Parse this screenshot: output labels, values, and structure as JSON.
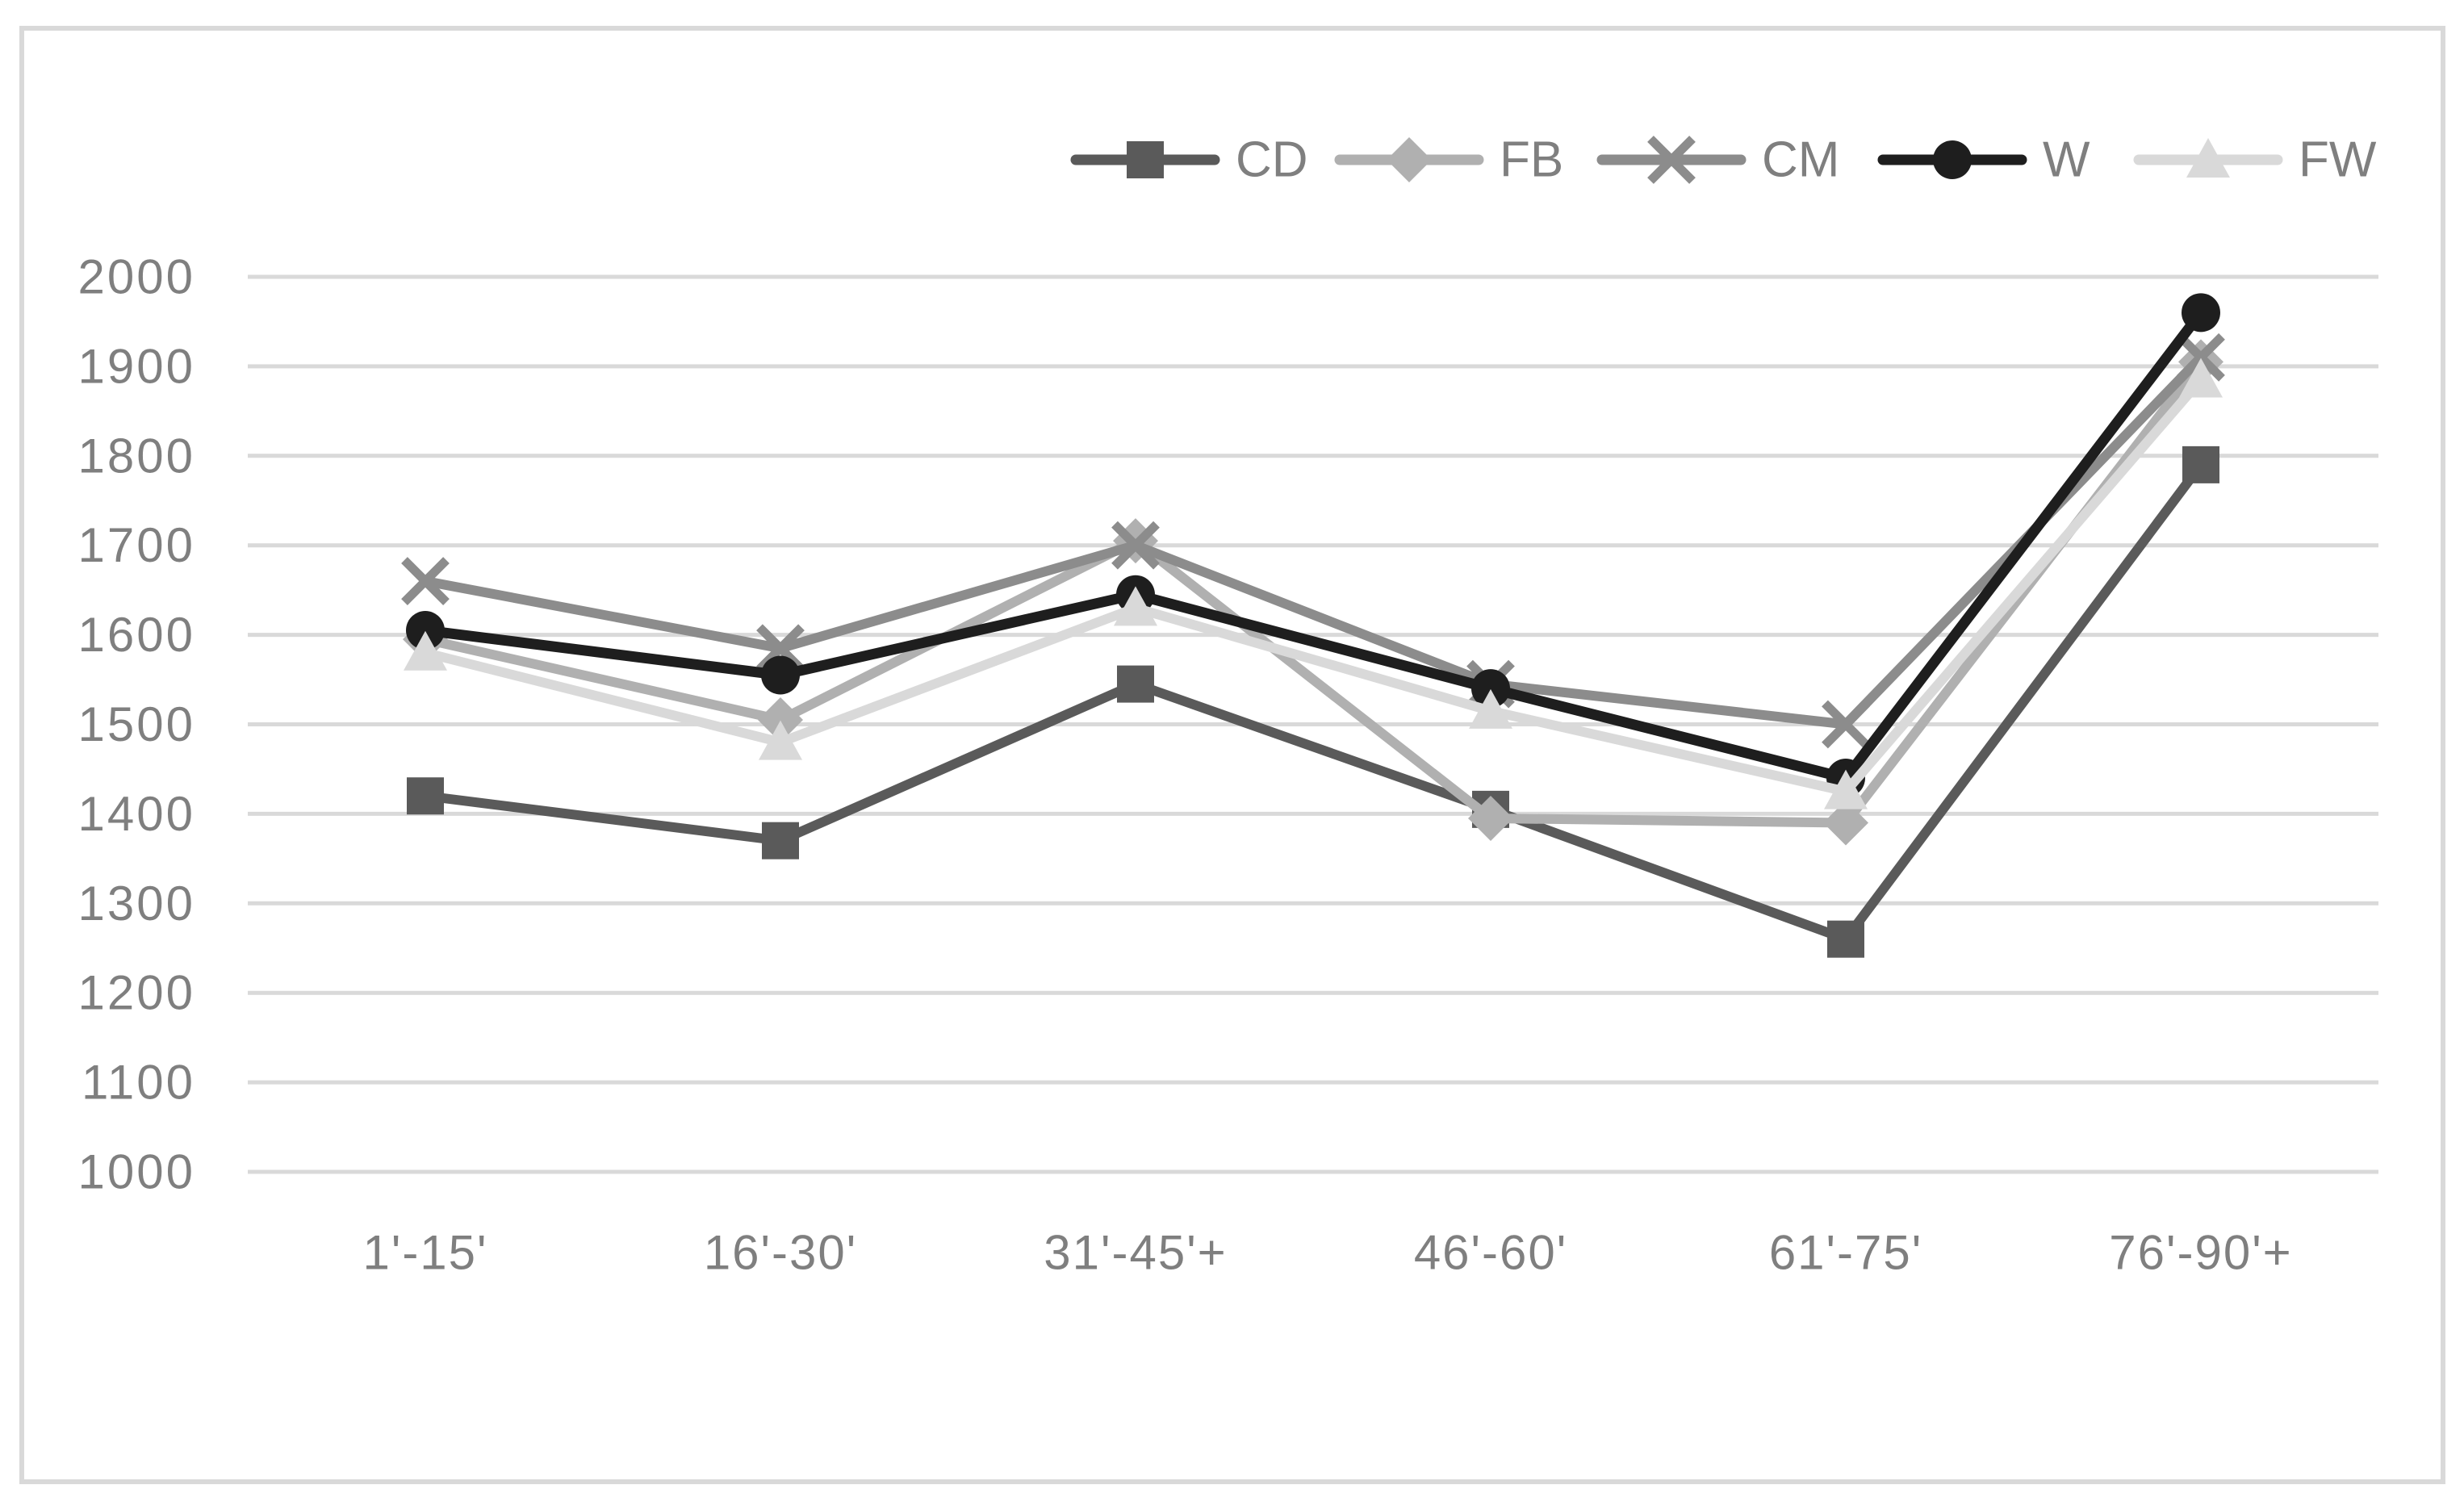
{
  "chart_data": {
    "type": "line",
    "title": "",
    "xlabel": "",
    "ylabel": "",
    "categories": [
      "1'-15'",
      "16'-30'",
      "31'-45'+",
      "46'-60'",
      "61'-75'",
      "76'-90'+"
    ],
    "series": [
      {
        "name": "CD",
        "marker": "square",
        "color": "#5a5a5a",
        "values": [
          1420,
          1370,
          1545,
          1405,
          1260,
          1790
        ]
      },
      {
        "name": "FB",
        "marker": "diamond",
        "color": "#b0b0b0",
        "values": [
          1595,
          1505,
          1705,
          1395,
          1390,
          1905
        ]
      },
      {
        "name": "CM",
        "marker": "x",
        "color": "#8c8c8c",
        "values": [
          1660,
          1585,
          1700,
          1545,
          1500,
          1910
        ]
      },
      {
        "name": "W",
        "marker": "circle",
        "color": "#1e1e1e",
        "values": [
          1605,
          1555,
          1645,
          1540,
          1440,
          1960
        ]
      },
      {
        "name": "FW",
        "marker": "triangle",
        "color": "#d9d9d9",
        "values": [
          1580,
          1480,
          1630,
          1515,
          1425,
          1885
        ]
      }
    ],
    "ylim": [
      1000,
      2000
    ],
    "ytick_step": 100,
    "ytick_labels": [
      "1000",
      "1100",
      "1200",
      "1300",
      "1400",
      "1500",
      "1600",
      "1700",
      "1800",
      "1900",
      "2000"
    ],
    "grid": true,
    "legend_position": "top",
    "legend_order": [
      "CD",
      "FB",
      "CM",
      "W",
      "FW"
    ],
    "axis_text_color": "#7f7f7f",
    "gridline_color": "#d9d9d9",
    "frame_color": "#d9d9d9",
    "background_color": "#ffffff"
  }
}
